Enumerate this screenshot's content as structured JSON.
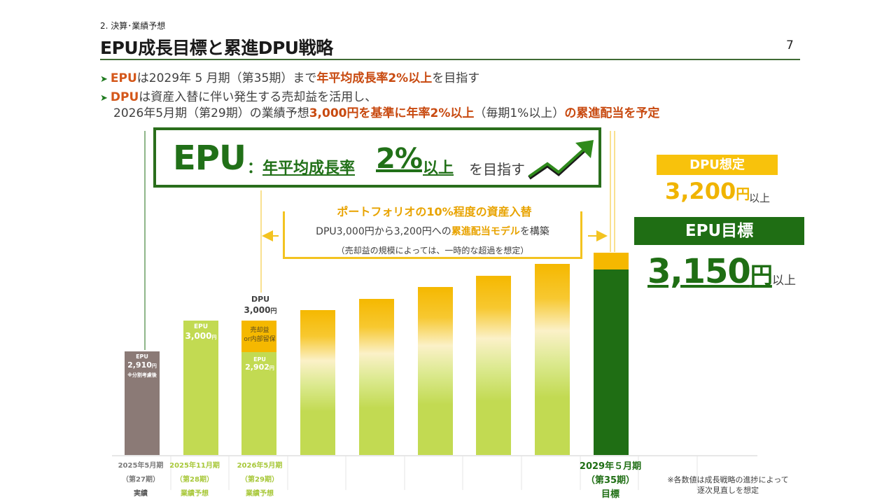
{
  "header": {
    "section": "2. 決算･業績予想",
    "title": "EPU成長目標と累進DPU戦略",
    "page_number": "7"
  },
  "bullets": [
    {
      "lead": "EPU",
      "t1": "は2029年 5 月期（第35期）まで",
      "em": "年平均成長率2%以上",
      "t2": "を目指す"
    },
    {
      "lead": "DPU",
      "t1": "は資産入替に伴い発生する売却益を活用し、",
      "line2a": "2026年5月期（第29期）の業績予想",
      "em2": "3,000円を基準に年率2%以上",
      "line2b": "（毎期1%以上）",
      "em3": "の累進配当を予定"
    }
  ],
  "epu_goal": {
    "big": "EPU",
    "colon": "：",
    "sub1": "年平均成長率",
    "pct": "2%",
    "sub2": "以上",
    "tail": "を目指す"
  },
  "portfolio": {
    "title": "ポートフォリオの10%程度の資産入替",
    "line1_a": "DPU3,000円から3,200円への",
    "line1_em": "累進配当モデル",
    "line1_b": "を構築",
    "line2": "（売却益の規模によっては、一時的な超過を想定）"
  },
  "dpu_target": {
    "label": "DPU想定",
    "value": "3,200",
    "unit": "円",
    "suffix": "以上"
  },
  "epu_target": {
    "label": "EPU目標",
    "value": "3,150",
    "unit": "円",
    "suffix": "以上"
  },
  "note": "※各数値は成長戦略の進捗によって逐次見直しを想定",
  "bar_labels": {
    "b1_epu": "EPU",
    "b1_val": "2,910",
    "b1_unit": "円",
    "b1_note": "※分割考慮後",
    "b2_epu": "EPU",
    "b2_val": "3,000",
    "b2_unit": "円",
    "b3_dpu": "DPU",
    "b3_dpu_val": "3,000",
    "b3_dpu_unit": "円",
    "b3_gain": "売却益",
    "b3_gain2": "or内部留保",
    "b3_epu": "EPU",
    "b3_epu_val": "2,902",
    "b3_epu_unit": "円"
  },
  "x_labels": [
    {
      "l1": "2025年5月期",
      "l2": "（第27期）",
      "l3": "実績"
    },
    {
      "l1": "2025年11月期",
      "l2": "（第28期）",
      "l3": "業績予想"
    },
    {
      "l1": "2026年5月期",
      "l2": "（第29期）",
      "l3": "業績予想"
    },
    {
      "l1": "2029年５月期",
      "l2": "（第35期）",
      "l3": "目標"
    }
  ],
  "colors": {
    "actual": "#8b7a76",
    "epu_light": "#c2da52",
    "dpu_gold": "#f5b800",
    "target_green": "#1f6e14"
  },
  "chart_data": {
    "type": "bar",
    "categories": [
      "2025年5月期",
      "2025年11月期",
      "2026年5月期",
      "",
      "",
      "",
      "",
      "",
      "2029年５月期"
    ],
    "series": [
      {
        "name": "EPU",
        "values": [
          2910,
          3000,
          2902,
          null,
          null,
          null,
          null,
          null,
          3150
        ]
      },
      {
        "name": "DPU",
        "values": [
          null,
          null,
          3000,
          null,
          null,
          null,
          null,
          null,
          3200
        ]
      }
    ],
    "ylim": [
      0,
      3300
    ]
  }
}
